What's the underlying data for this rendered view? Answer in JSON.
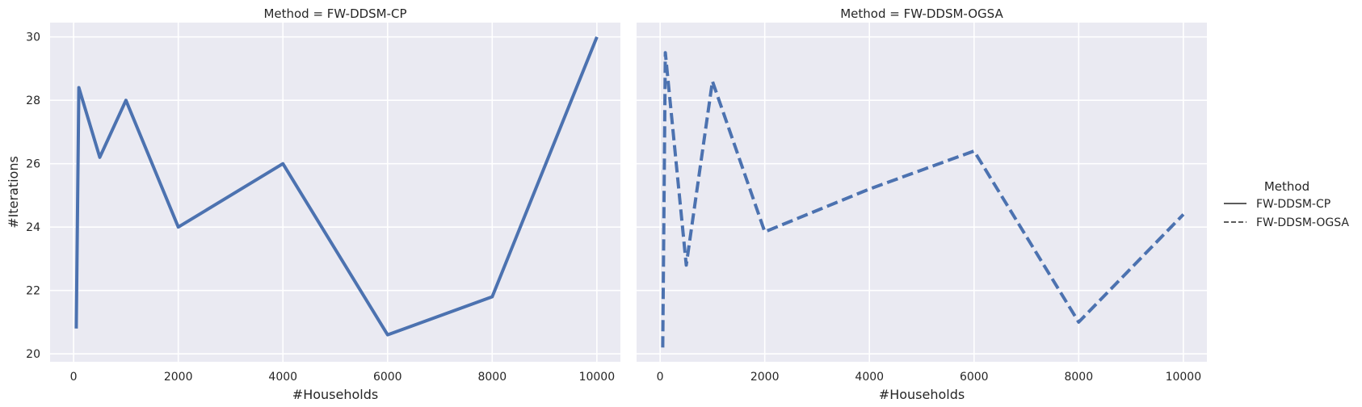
{
  "chart_data": {
    "type": "line",
    "x_label": "#Households",
    "y_label": "#Iterations",
    "ylim": [
      19.75,
      30.45
    ],
    "xlim": [
      -450,
      10450
    ],
    "x_ticks": [
      0,
      2000,
      4000,
      6000,
      8000,
      10000
    ],
    "y_ticks": [
      20,
      22,
      24,
      26,
      28,
      30
    ],
    "grid": true,
    "line_color": "#4c72b0",
    "panel_bg": "#eaeaf2",
    "legend": {
      "title": "Method",
      "position": "right",
      "entries": [
        {
          "label": "FW-DDSM-CP",
          "style": "solid"
        },
        {
          "label": "FW-DDSM-OGSA",
          "style": "dashed"
        }
      ]
    },
    "panels": [
      {
        "title": "Method = FW-DDSM-CP",
        "series": {
          "name": "FW-DDSM-CP",
          "style": "solid",
          "x": [
            50,
            100,
            500,
            1000,
            2000,
            4000,
            6000,
            8000,
            10000
          ],
          "y": [
            20.8,
            28.4,
            26.2,
            28.0,
            24.0,
            26.0,
            20.6,
            21.8,
            30.0
          ]
        }
      },
      {
        "title": "Method = FW-DDSM-OGSA",
        "series": {
          "name": "FW-DDSM-OGSA",
          "style": "dashed",
          "x": [
            50,
            100,
            500,
            1000,
            2000,
            4000,
            6000,
            8000,
            10000
          ],
          "y": [
            20.2,
            29.5,
            22.8,
            28.6,
            23.85,
            25.2,
            26.4,
            21.0,
            24.4
          ]
        }
      }
    ]
  }
}
